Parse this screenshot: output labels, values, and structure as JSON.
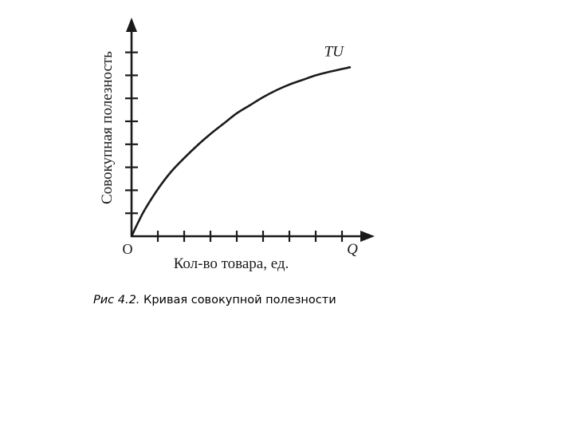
{
  "chart_data": {
    "type": "line",
    "title": "",
    "xlabel": "Кол-во товара, ед.",
    "ylabel": "Совокупная полезность",
    "origin_label": "O",
    "x_axis_symbol": "Q",
    "xlim": [
      0,
      9
    ],
    "ylim": [
      0,
      9
    ],
    "x_ticks": [
      1,
      2,
      3,
      4,
      5,
      6,
      7,
      8
    ],
    "y_ticks": [
      1,
      2,
      3,
      4,
      5,
      6,
      7,
      8
    ],
    "series": [
      {
        "name": "TU",
        "x": [
          0,
          0.25,
          0.5,
          1,
          1.5,
          2,
          2.5,
          3,
          3.5,
          4,
          4.5,
          5,
          5.5,
          6,
          6.5,
          7,
          7.5,
          8.3
        ],
        "y": [
          0,
          0.6,
          1.15,
          2.05,
          2.8,
          3.4,
          3.95,
          4.45,
          4.9,
          5.35,
          5.7,
          6.05,
          6.35,
          6.6,
          6.8,
          7.0,
          7.15,
          7.35
        ]
      }
    ],
    "grid": false,
    "colors": {
      "line": "#1a1a1a",
      "axis": "#1a1a1a"
    }
  },
  "caption": {
    "prefix": "Рис 4.2.",
    "text": " Кривая совокупной полезности"
  }
}
